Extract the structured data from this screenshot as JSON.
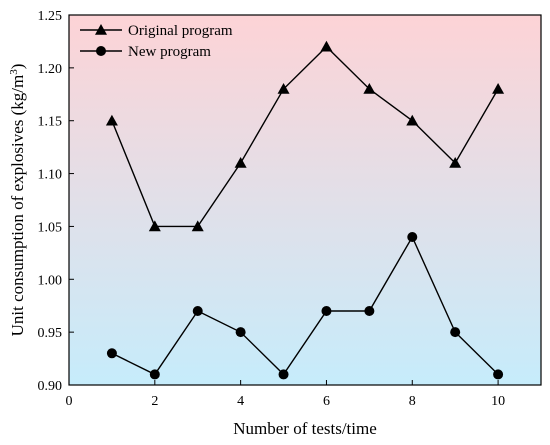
{
  "chart_data": {
    "type": "line",
    "xlabel": "Number of tests/time",
    "ylabel": "Unit consumption of explosives (kg/m",
    "ylabel_sup": "3",
    "ylabel_close": ")",
    "xlim": [
      0,
      11
    ],
    "ylim": [
      0.9,
      1.25
    ],
    "xticks": [
      0,
      2,
      4,
      6,
      8,
      10
    ],
    "xtick_labels": [
      "0",
      "2",
      "4",
      "6",
      "8",
      "10"
    ],
    "yticks": [
      0.9,
      0.95,
      1.0,
      1.05,
      1.1,
      1.15,
      1.2,
      1.25
    ],
    "ytick_labels": [
      "0.90",
      "0.95",
      "1.00",
      "1.05",
      "1.10",
      "1.15",
      "1.20",
      "1.25"
    ],
    "grid": false,
    "legend_position": "top-left",
    "background_gradient": {
      "top": "#fdd3d6",
      "bottom": "#c6ecfb"
    },
    "x": [
      1,
      2,
      3,
      4,
      5,
      6,
      7,
      8,
      9,
      10
    ],
    "series": [
      {
        "name": "Original program",
        "marker": "triangle",
        "color": "#000000",
        "values": [
          1.15,
          1.05,
          1.05,
          1.11,
          1.18,
          1.22,
          1.18,
          1.15,
          1.11,
          1.18
        ]
      },
      {
        "name": "New program",
        "marker": "circle",
        "color": "#000000",
        "values": [
          0.93,
          0.91,
          0.97,
          0.95,
          0.91,
          0.97,
          0.97,
          1.04,
          0.95,
          0.91
        ]
      }
    ]
  }
}
